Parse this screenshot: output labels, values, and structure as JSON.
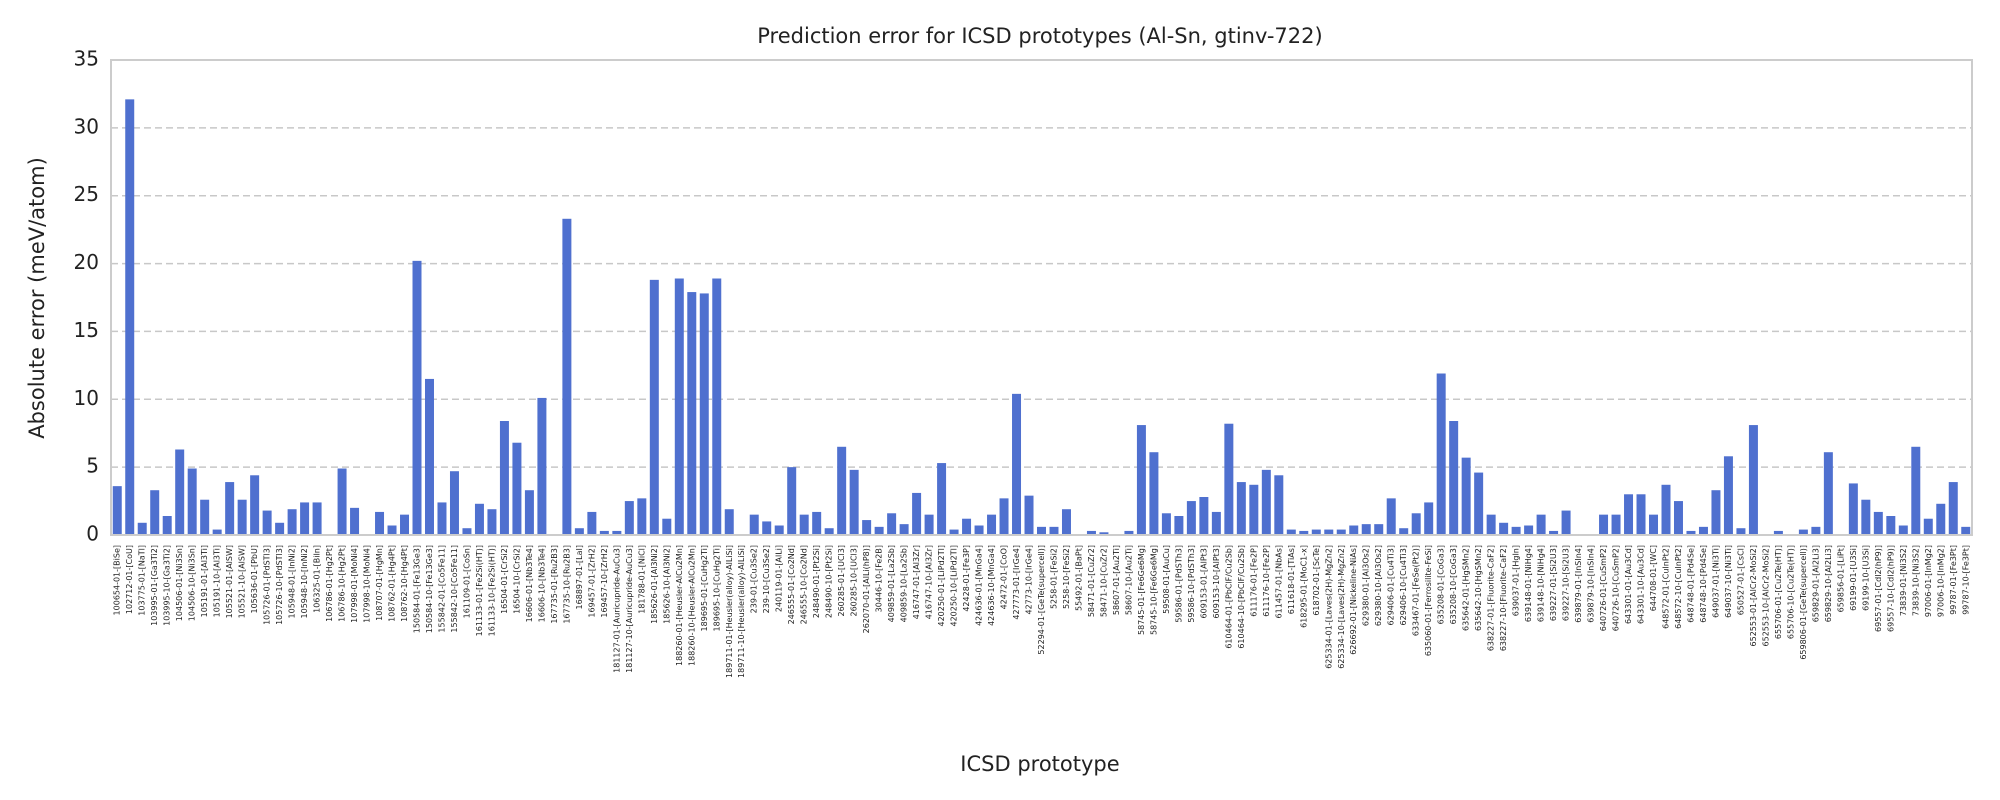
{
  "chart_data": {
    "type": "bar",
    "title": "Prediction error for ICSD prototypes (Al-Sn, gtinv-722)",
    "x_label": "ICSD prototype",
    "y_label": "Absolute error (meV/atom)",
    "color": "#4f70cf",
    "grid": true,
    "ylim": [
      0,
      35
    ],
    "yticks": [
      0,
      5,
      10,
      15,
      20,
      25,
      30,
      35
    ],
    "categories": [
      "100654-01-[BiSe]",
      "102712-01-[CoU]",
      "103775-01-[NaTl]",
      "103995-01-[Ga3Ti2]",
      "103995-10-[Ga3Ti2]",
      "104506-01-[Ni3Sn]",
      "104506-10-[Ni3Sn]",
      "105191-01-[Al3Ti]",
      "105191-10-[Al3Ti]",
      "105521-01-[AlSW]",
      "105521-10-[AlSW]",
      "105636-01-[PbU]",
      "105726-01-[PdSTl3]",
      "105726-10-[PdSTl3]",
      "105948-01-[InNi2]",
      "105948-10-[InNi2]",
      "106325-01-[BiIn]",
      "106786-01-[Hg2Pt]",
      "106786-10-[Hg2Pt]",
      "107998-01-[MoNi4]",
      "107998-10-[MoNi4]",
      "108707-01-[HgMn]",
      "108762-01-[Hg4Pt]",
      "108762-10-[Hg4Pt]",
      "150584-01-[Fe13Ge3]",
      "150584-10-[Fe13Ge3]",
      "155842-01-[Co5Fe11]",
      "155842-10-[Co5Fe11]",
      "161109-01-[CoSn]",
      "161133-01-[Fe2Si(HT)]",
      "161133-10-[Fe2Si(HT)]",
      "16504-01-[CrSi2]",
      "16504-10-[CrSi2]",
      "16606-01-[Nb3Te4]",
      "16606-10-[Nb3Te4]",
      "167735-01-[Ru2B3]",
      "167735-10-[Ru2B3]",
      "168897-01-[LaI]",
      "169457-01-[ZrH2]",
      "169457-10-[ZrH2]",
      "181127-01-[Auricupride-AuCu3]",
      "181127-10-[Auricupride-AuCu3]",
      "181788-01-[NiCl]",
      "185626-01-[Al3Ni2]",
      "185626-10-[Al3Ni2]",
      "188260-01-[Heusler-AlCu2Mn]",
      "188260-10-[Heusler-AlCu2Mn]",
      "189695-01-[CuHg2Ti]",
      "189695-10-[CuHg2Ti]",
      "189711-01-[Heusler(alloy)-AlLiSi]",
      "189711-10-[Heusler(alloy)-AlLiSi]",
      "239-01-[Cu3Se2]",
      "239-10-[Cu3Se2]",
      "240119-01-[AlLi]",
      "246555-01-[Co2Nd]",
      "246555-10-[Co2Nd]",
      "248490-01-[Pt2Si]",
      "248490-10-[Pt2Si]",
      "260285-01-[UCl3]",
      "260285-10-[UCl3]",
      "262070-01-[AlLi(hP8)]",
      "30446-10-[Fe2B]",
      "409859-01-[La2Sb]",
      "409859-10-[La2Sb]",
      "416747-01-[Al3Zr]",
      "416747-10-[Al3Zr]",
      "420250-01-[LiPd2Tl]",
      "420250-10-[LiPd2Tl]",
      "42428-01-[Fe3P]",
      "424636-01-[MnGa4]",
      "424636-10-[MnGa4]",
      "42472-01-[CoO]",
      "427773-01-[IrGe4]",
      "42773-10-[IrGe4]",
      "52294-01-[GeTe(supercell)]",
      "5258-01-[FeSi2]",
      "5258-10-[FeSi2]",
      "55492-01-[BaPt]",
      "58471-01-[CuZr2]",
      "58471-10-[CuZr2]",
      "58607-01-[Au2Ti]",
      "58607-10-[Au2Ti]",
      "58745-01-[Fe6Ge6Mg]",
      "58745-10-[Fe6Ge6Mg]",
      "59508-01-[AuCu]",
      "59586-01-[PdSTh3]",
      "59586-10-[PdSTh3]",
      "609153-01-[AlPt3]",
      "609153-10-[AlPt3]",
      "610464-01-[PbClF/Cu2Sb]",
      "610464-10-[PbClF/Cu2Sb]",
      "611176-01-[Fe2P]",
      "611176-10-[Fe2P]",
      "611457-01-[NbAs]",
      "611618-01-[TiAs]",
      "618295-01-[MoC1-x]",
      "618702-01-[ScTe]",
      "625334-01-[Laves(2H)-MgZn2]",
      "625334-10-[Laves(2H)-MgZn2]",
      "626692-01-[Nickeline-NiAs]",
      "629380-01-[Al3Os2]",
      "629380-10-[Al3Os2]",
      "629406-01-[Cu4Ti3]",
      "629406-10-[Cu4Ti3]",
      "633467-01-[FeSe(Pt2)]",
      "635060-01-[Ferrosilite-FeSi]",
      "635208-01-[CoGa3]",
      "635208-10-[CoGa3]",
      "635642-01-[HgSMn2]",
      "635642-10-[HgSMn2]",
      "638227-01-[Fluorite-CaF2]",
      "638227-10-[Fluorite-CaF2]",
      "639037-01-[HgIn]",
      "639148-01-[NiHg4]",
      "639148-10-[NiHg4]",
      "639227-01-[Si2U3]",
      "639227-10-[Si2U3]",
      "639879-01-[InSIn4]",
      "639879-10-[InSIn4]",
      "640726-01-[CuSmP2]",
      "640726-10-[CuSmP2]",
      "643301-01-[Au3Cd]",
      "643301-10-[Au3Cd]",
      "644708-01-[WC]",
      "648572-01-[CuInPt2]",
      "648572-10-[CuInPt2]",
      "648748-01-[Pd4Se]",
      "648748-10-[Pd4Se]",
      "649037-01-[Ni3Ti]",
      "649037-10-[Ni3Ti]",
      "650527-01-[CsCl]",
      "652553-01-[AlCr2-MoSi2]",
      "652553-10-[AlCr2-MoSi2]",
      "655706-01-[Cu2Te(HT)]",
      "655706-10-[Cu2Te(HT)]",
      "659806-01-[GeTe(supercell)]",
      "659829-01-[Al2Li3]",
      "659829-10-[Al2Li3]",
      "659856-01-[LiPt]",
      "69199-01-[U3Si]",
      "69199-10-[U3Si]",
      "69557-01-[CdI2(hP9)]",
      "69557-10-[CdI2(hP9)]",
      "73839-01-[Ni3S2]",
      "73839-10-[Ni3S2]",
      "97006-01-[InMg2]",
      "97006-10-[InMg2]",
      "99787-01-[Fe3Pt]",
      "99787-10-[Fe3Pt]"
    ],
    "values": [
      3.6,
      32.1,
      0.9,
      3.3,
      1.4,
      6.3,
      4.9,
      2.6,
      0.4,
      3.9,
      2.6,
      4.4,
      1.8,
      0.9,
      1.9,
      2.4,
      2.4,
      0,
      4.9,
      2.0,
      0,
      1.7,
      0.7,
      1.5,
      20.2,
      11.5,
      2.4,
      4.7,
      0.5,
      2.3,
      1.9,
      8.4,
      6.8,
      3.3,
      10.1,
      0,
      23.3,
      0.5,
      1.7,
      0.3,
      0.3,
      2.5,
      2.7,
      18.8,
      1.2,
      18.9,
      17.9,
      17.8,
      18.9,
      1.9,
      0,
      1.5,
      1.0,
      0.7,
      5.0,
      1.5,
      1.7,
      0.5,
      6.5,
      4.8,
      1.1,
      0.6,
      1.6,
      0.8,
      3.1,
      1.5,
      5.3,
      0.4,
      1.2,
      0.7,
      1.5,
      2.7,
      10.4,
      2.9,
      0.6,
      0.6,
      1.9,
      0,
      0.3,
      0.2,
      0,
      0.3,
      8.1,
      6.1,
      1.6,
      1.4,
      2.5,
      2.8,
      1.7,
      8.2,
      3.9,
      3.7,
      4.8,
      4.4,
      0.4,
      0.3,
      0.4,
      0.4,
      0.4,
      0.7,
      0.8,
      0.8,
      2.7,
      0.5,
      1.6,
      2.4,
      11.9,
      8.4,
      5.7,
      4.6,
      1.5,
      0.9,
      0.6,
      0.7,
      1.5,
      0.3,
      1.8,
      0,
      0,
      1.5,
      1.5,
      3.0,
      3.0,
      1.5,
      3.7,
      2.5,
      0.3,
      0.6,
      3.3,
      5.8,
      0.5,
      8.1,
      0,
      0.3,
      0,
      0.4,
      0.6,
      6.1,
      0,
      3.8,
      2.6,
      1.7,
      1.4,
      0.7,
      6.5,
      1.2,
      2.3,
      3.9,
      0.6
    ]
  }
}
